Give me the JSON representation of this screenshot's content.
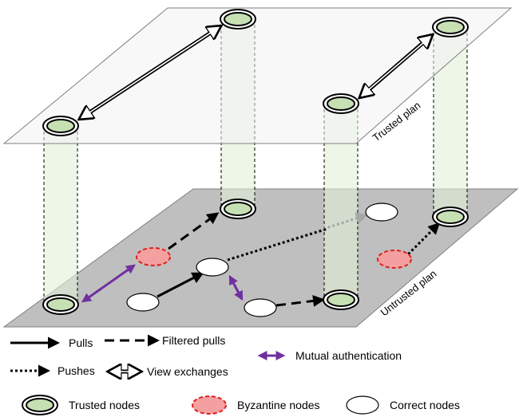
{
  "planes": {
    "trusted": {
      "label": "Trusted plan",
      "color": "#f2f2f2"
    },
    "untrusted": {
      "label": "Untrusted plan",
      "color": "#bfbfbf"
    }
  },
  "legend": {
    "pulls": "Pulls",
    "filtered_pulls": "Filtered pulls",
    "mutual_authentication": "Mutual authentication",
    "pushes": "Pushes",
    "view_exchanges": "View exchanges",
    "trusted_nodes": "Trusted nodes",
    "byzantine_nodes": "Byzantine nodes",
    "correct_nodes": "Correct nodes"
  },
  "colors": {
    "trusted_fill": "#c6e0b4",
    "byzantine_fill": "#f4a0a0",
    "byzantine_stroke": "#e02020",
    "correct_fill": "#ffffff",
    "mutual_auth": "#7030a0",
    "push_faded": "#a6a6a6",
    "pillar_fill": "#e2f0d9"
  }
}
